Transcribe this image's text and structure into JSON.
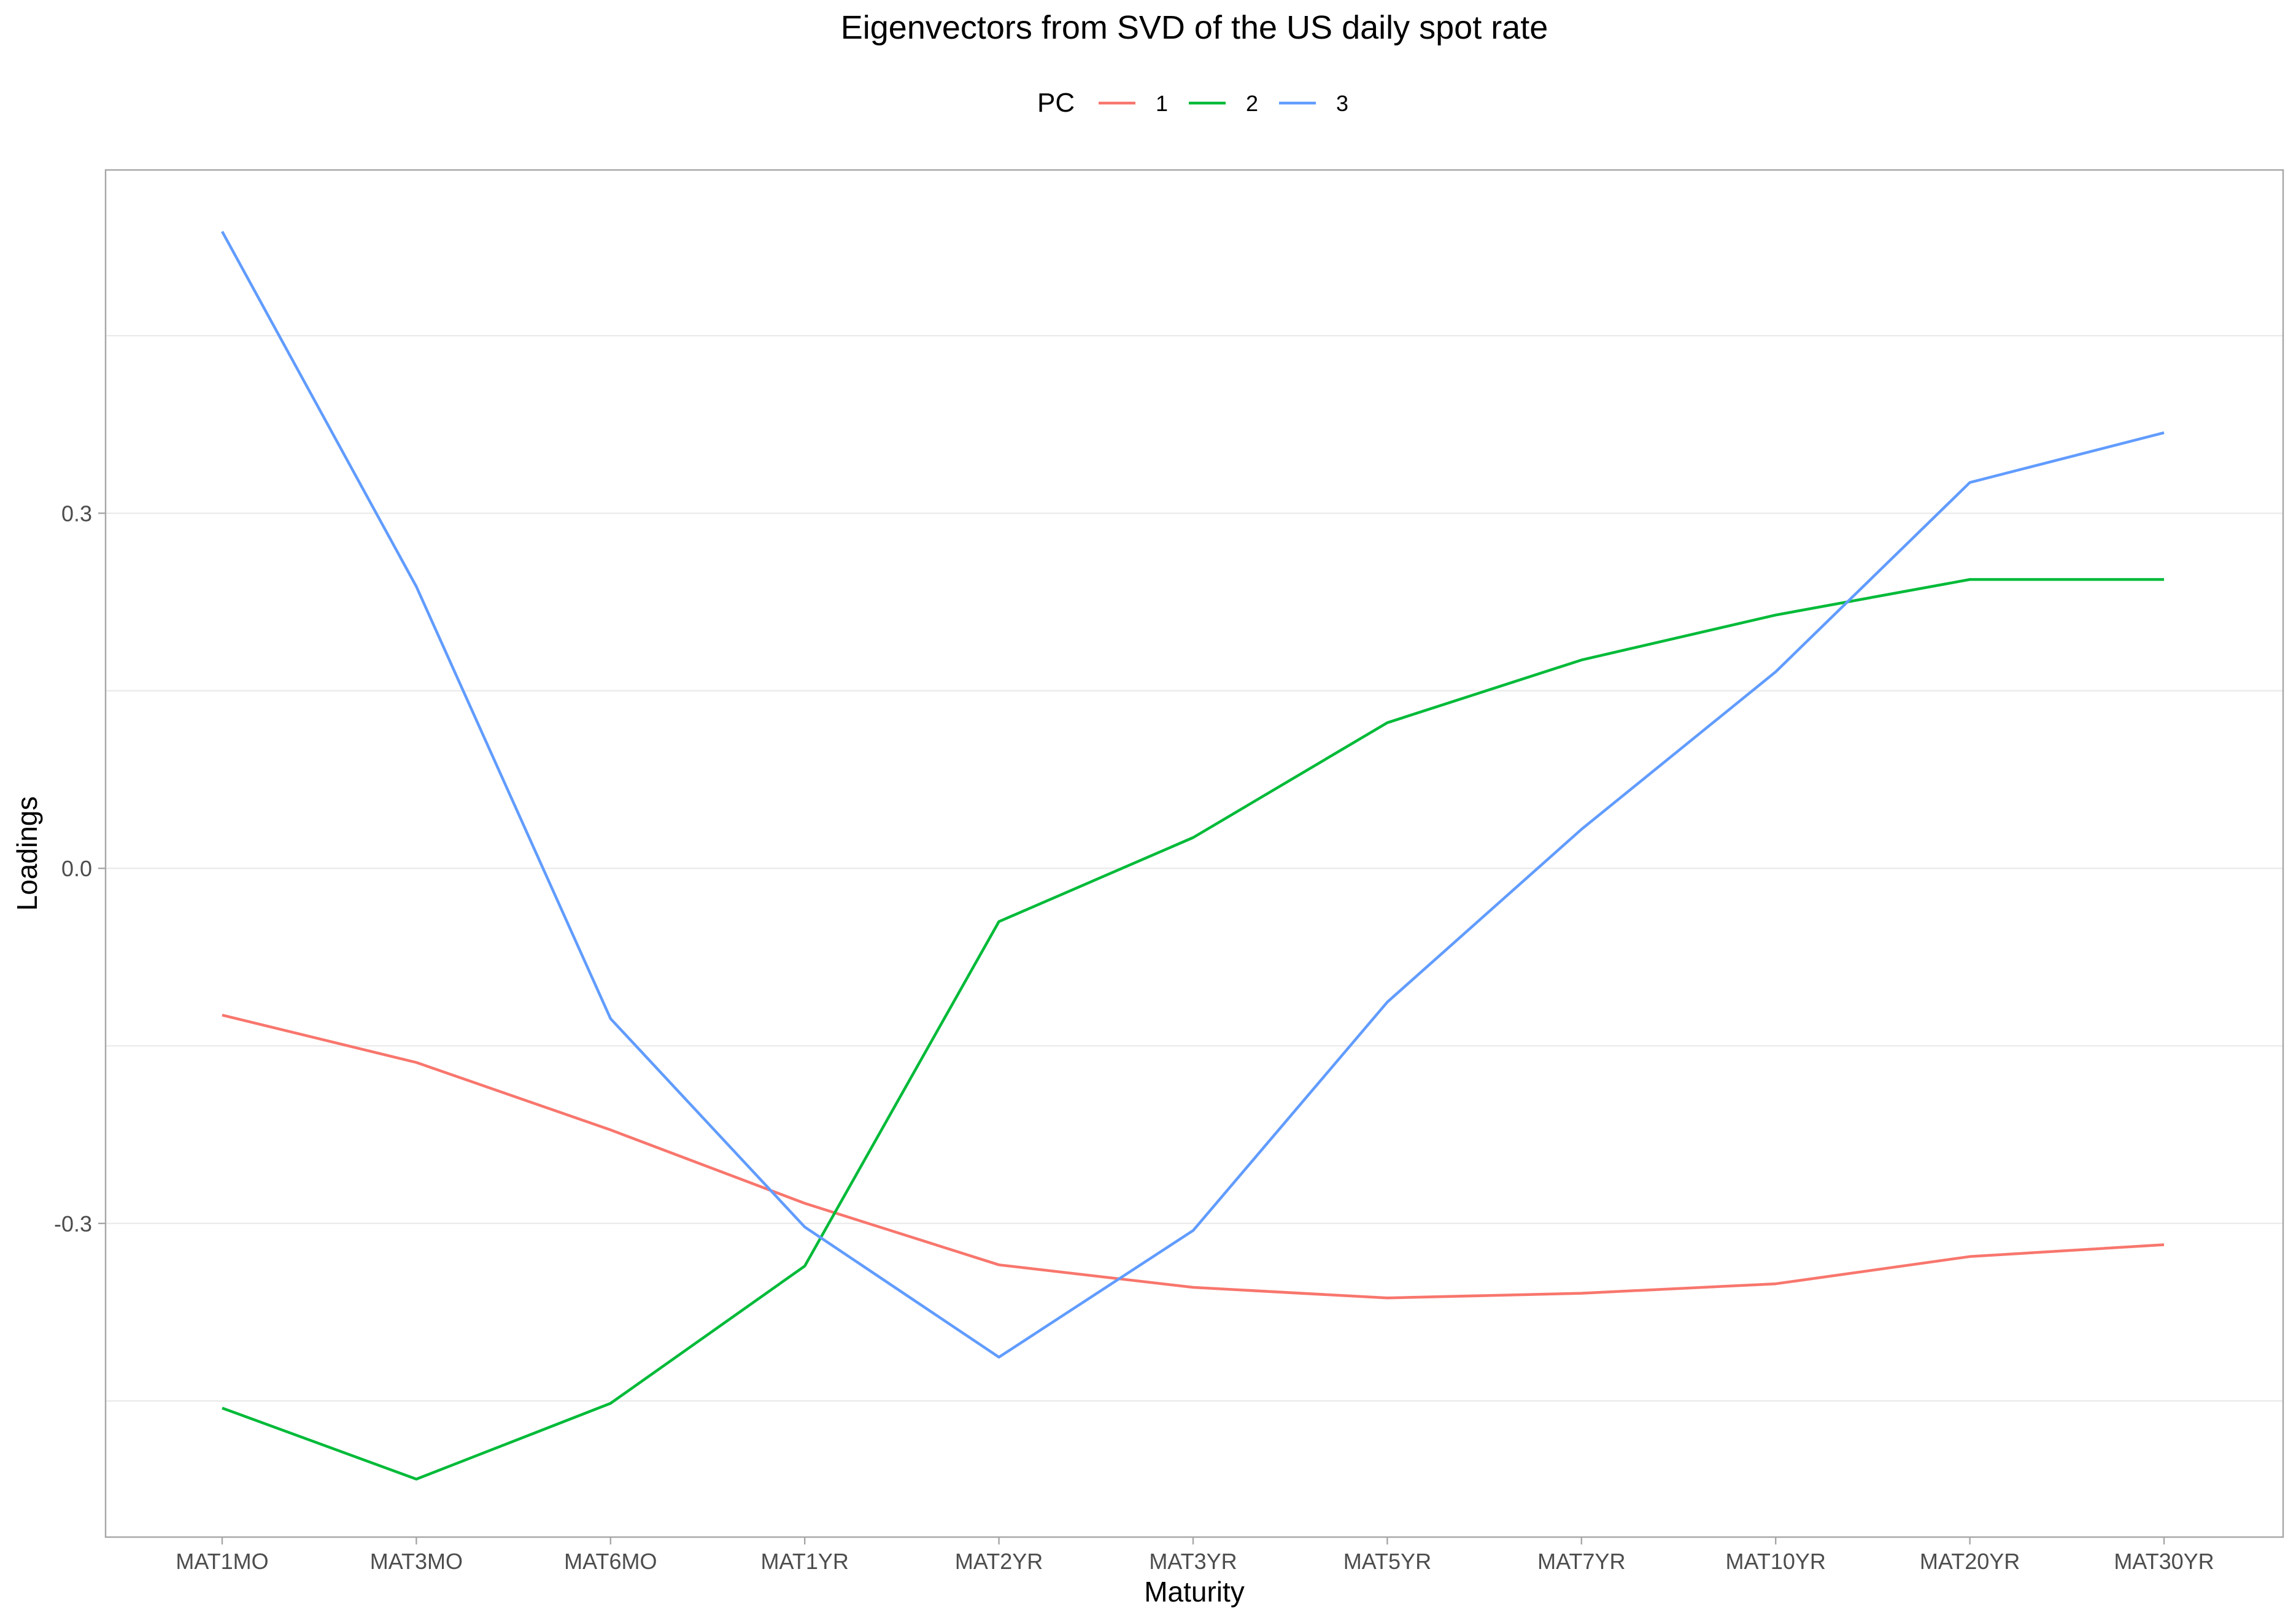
{
  "chart_data": {
    "type": "line",
    "title": "Eigenvectors from SVD of the US daily spot rate",
    "xlabel": "Maturity",
    "ylabel": "Loadings",
    "categories": [
      "MAT1MO",
      "MAT3MO",
      "MAT6MO",
      "MAT1YR",
      "MAT2YR",
      "MAT3YR",
      "MAT5YR",
      "MAT7YR",
      "MAT10YR",
      "MAT20YR",
      "MAT30YR"
    ],
    "ylim": [
      -0.565,
      0.59
    ],
    "yticks": [
      {
        "value": -0.3,
        "label": "-0.3"
      },
      {
        "value": 0.0,
        "label": "0.0"
      },
      {
        "value": 0.3,
        "label": "0.3"
      }
    ],
    "minor_grid": [
      -0.45,
      -0.15,
      0.15,
      0.45
    ],
    "grid": true,
    "legend": {
      "title": "PC",
      "position": "top"
    },
    "series": [
      {
        "name": "1",
        "color": "#F8766D",
        "values": [
          -0.124,
          -0.164,
          -0.221,
          -0.283,
          -0.335,
          -0.354,
          -0.363,
          -0.359,
          -0.351,
          -0.328,
          -0.318
        ]
      },
      {
        "name": "2",
        "color": "#00BA38",
        "values": [
          -0.456,
          -0.516,
          -0.452,
          -0.336,
          -0.045,
          0.026,
          0.123,
          0.176,
          0.214,
          0.244,
          0.244
        ]
      },
      {
        "name": "3",
        "color": "#619CFF",
        "values": [
          0.538,
          0.238,
          -0.127,
          -0.303,
          -0.413,
          -0.306,
          -0.113,
          0.033,
          0.166,
          0.326,
          0.368
        ]
      }
    ]
  }
}
